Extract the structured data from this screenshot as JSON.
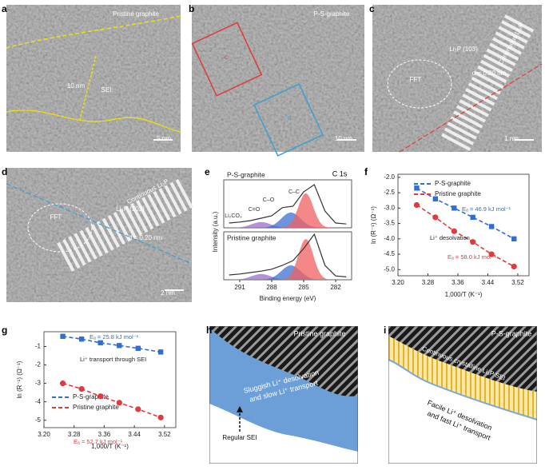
{
  "images": [
    {
      "letter": "a",
      "labels": [
        "Pristine graphite",
        "10 nm",
        "SEI",
        "5 nm"
      ]
    },
    {
      "letter": "b",
      "labels": [
        "P-S-graphite",
        "c",
        "d",
        "10 nm"
      ]
    },
    {
      "letter": "c",
      "labels": [
        "Continuous Li₃P",
        "Li₃P (103)",
        "d = 0.20 nm",
        "FFT",
        "1 nm"
      ]
    },
    {
      "letter": "d",
      "labels": [
        "Continuous Li₃P",
        "Li₃P (103)",
        "d = 0.20 nm",
        "FFT",
        "2 nm"
      ]
    }
  ],
  "diagrams": [
    {
      "letter": "h",
      "labels": [
        "Pristine graphite",
        "Sluggish Li⁺ desolvation",
        "and slow Li⁺ transport",
        "Regular SEI"
      ]
    },
    {
      "letter": "i",
      "labels": [
        "P-S-graphite",
        "Continuous crystalline Li₃P SEI",
        "Facile Li⁺ desolvation",
        "and fast Li⁺ transport"
      ]
    }
  ],
  "chart_data": [
    {
      "type": "xps",
      "letter": "e",
      "xlabel": "Binding energy (eV)",
      "ylabel": "Intensity (a.u.)",
      "xlim": [
        292.5,
        280.5
      ],
      "xticks": [
        291,
        288,
        285,
        282
      ],
      "ylim": [
        0,
        1
      ],
      "x": [
        292,
        291,
        290,
        289,
        288,
        287,
        286,
        285,
        284,
        283,
        282,
        281
      ],
      "series": [
        {
          "name": "P-S-graphite",
          "color": "#333333",
          "values": [
            0.1,
            0.12,
            0.15,
            0.2,
            0.25,
            0.42,
            0.45,
            0.75,
            0.9,
            0.35,
            0.1,
            0.08
          ]
        },
        {
          "name": "Pristine graphite",
          "color": "#333333",
          "values": [
            0.1,
            0.12,
            0.15,
            0.18,
            0.22,
            0.3,
            0.4,
            0.65,
            0.95,
            0.3,
            0.08,
            0.06
          ]
        }
      ],
      "annotations": [
        {
          "text": "C 1s",
          "color": "#000000"
        },
        {
          "text": "Li₂CO₃",
          "color": "#333333"
        },
        {
          "text": "C=O",
          "color": "#333333"
        },
        {
          "text": "C–O",
          "color": "#333333"
        },
        {
          "text": "C–C",
          "color": "#333333"
        }
      ]
    },
    {
      "type": "line",
      "letter": "f",
      "xlabel": "1,000/T (K⁻¹)",
      "ylabel": "ln (R⁻¹) (Ω⁻¹)",
      "xlim": [
        3.2,
        3.55
      ],
      "ylim": [
        -5.2,
        -1.9
      ],
      "xticks": [
        {
          "value": 3.2,
          "label": "3.20"
        },
        3.28,
        3.36,
        3.44,
        3.52
      ],
      "yticks": [
        {
          "value": -2,
          "label": "-2.0"
        },
        -2.5,
        {
          "value": -3,
          "label": "-3.0"
        },
        -3.5,
        {
          "value": -4,
          "label": "-4.0"
        },
        -4.5,
        {
          "value": -5,
          "label": "-5.0"
        }
      ],
      "x": [
        3.25,
        3.3,
        3.35,
        3.4,
        3.45,
        3.51
      ],
      "series": [
        {
          "name": "P-S-graphite",
          "color": "#2f6fd0",
          "marker": "square",
          "values": [
            -2.35,
            -2.7,
            -3.0,
            -3.3,
            -3.6,
            -4.0
          ]
        },
        {
          "name": "Pristine graphite",
          "color": "#e0393e",
          "marker": "circle",
          "values": [
            -2.9,
            -3.3,
            -3.75,
            -4.1,
            -4.5,
            -4.9
          ]
        }
      ],
      "annotations": [
        {
          "text": "Eₐ = 46.9 kJ mol⁻¹",
          "color": "#2f6fd0"
        },
        {
          "text": "Li⁺ desolvation",
          "color": "#222222"
        },
        {
          "text": "Eₐ = 58.0 kJ mol⁻¹",
          "color": "#e0393e"
        }
      ]
    },
    {
      "type": "line",
      "letter": "g",
      "xlabel": "1,000/T (K⁻¹)",
      "ylabel": "ln (R⁻¹) (Ω⁻¹)",
      "xlim": [
        3.2,
        3.55
      ],
      "ylim": [
        -5.4,
        -0.2
      ],
      "xticks": [
        {
          "value": 3.2,
          "label": "3.20"
        },
        3.28,
        3.36,
        3.44,
        3.52
      ],
      "yticks": [
        -1,
        -2,
        -3,
        -4,
        -5
      ],
      "x": [
        3.25,
        3.3,
        3.35,
        3.4,
        3.45,
        3.51
      ],
      "series": [
        {
          "name": "P-S-graphite",
          "color": "#2f6fd0",
          "marker": "square",
          "values": [
            -0.45,
            -0.6,
            -0.8,
            -0.95,
            -1.1,
            -1.3
          ]
        },
        {
          "name": "Pristine graphite",
          "color": "#e0393e",
          "marker": "circle",
          "values": [
            -3.0,
            -3.3,
            -3.7,
            -4.05,
            -4.4,
            -4.85
          ]
        }
      ],
      "annotations": [
        {
          "text": "Eₐ = 25.8 kJ mol⁻¹",
          "color": "#2f6fd0"
        },
        {
          "text": "Li⁺ transport through SEI",
          "color": "#222222"
        },
        {
          "text": "Eₐ = 52.7 kJ mol⁻¹",
          "color": "#e0393e"
        }
      ]
    }
  ]
}
